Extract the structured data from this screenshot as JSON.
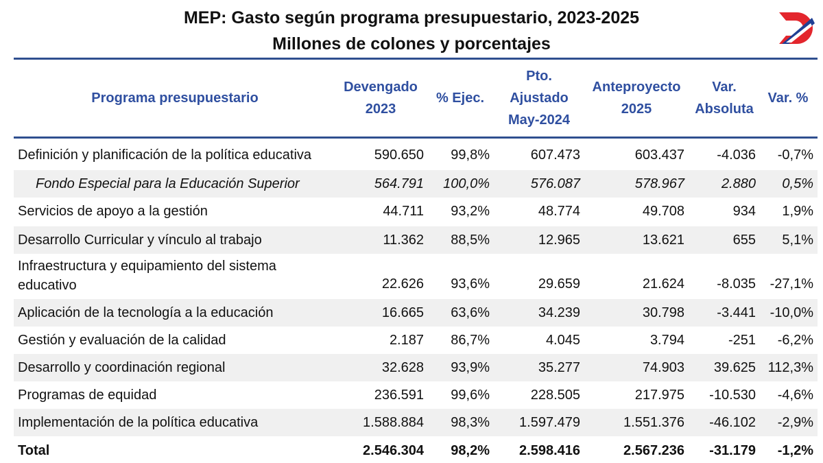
{
  "title": {
    "line1": "MEP: Gasto según programa presupuestario, 2023-2025",
    "line2": "Millones de colones y porcentajes"
  },
  "logo": {
    "icon": "d-logo-icon",
    "colors": {
      "red": "#e3262d",
      "blue": "#1f3f94"
    }
  },
  "columns": {
    "programa": "Programa presupuestario",
    "devengado": [
      "Devengado",
      "2023"
    ],
    "ejec": "% Ejec.",
    "pto": [
      "Pto.",
      "Ajustado",
      "May-2024"
    ],
    "anteproyecto": [
      "Anteproyecto",
      "2025"
    ],
    "var_abs": [
      "Var.",
      "Absoluta"
    ],
    "var_pct": "Var. %"
  },
  "rows": [
    {
      "label": "Definición y planificación de la política educativa",
      "devengado": "590.650",
      "ejec": "99,8%",
      "pto": "607.473",
      "ante": "603.437",
      "var_abs": "-4.036",
      "var_pct": "-0,7%"
    },
    {
      "label": "Fondo Especial para la Educación Superior",
      "devengado": "564.791",
      "ejec": "100,0%",
      "pto": "576.087",
      "ante": "578.967",
      "var_abs": "2.880",
      "var_pct": "0,5%"
    },
    {
      "label": "Servicios de apoyo a la gestión",
      "devengado": "44.711",
      "ejec": "93,2%",
      "pto": "48.774",
      "ante": "49.708",
      "var_abs": "934",
      "var_pct": "1,9%"
    },
    {
      "label": "Desarrollo Curricular y vínculo al trabajo",
      "devengado": "11.362",
      "ejec": "88,5%",
      "pto": "12.965",
      "ante": "13.621",
      "var_abs": "655",
      "var_pct": "5,1%"
    },
    {
      "label_lines": [
        "Infraestructura y equipamiento del sistema",
        "educativo"
      ],
      "devengado": "22.626",
      "ejec": "93,6%",
      "pto": "29.659",
      "ante": "21.624",
      "var_abs": "-8.035",
      "var_pct": "-27,1%"
    },
    {
      "label": "Aplicación de la tecnología a la educación",
      "devengado": "16.665",
      "ejec": "63,6%",
      "pto": "34.239",
      "ante": "30.798",
      "var_abs": "-3.441",
      "var_pct": "-10,0%"
    },
    {
      "label": "Gestión y evaluación de la calidad",
      "devengado": "2.187",
      "ejec": "86,7%",
      "pto": "4.045",
      "ante": "3.794",
      "var_abs": "-251",
      "var_pct": "-6,2%"
    },
    {
      "label": "Desarrollo y coordinación regional",
      "devengado": "32.628",
      "ejec": "93,9%",
      "pto": "35.277",
      "ante": "74.903",
      "var_abs": "39.625",
      "var_pct": "112,3%"
    },
    {
      "label": "Programas de equidad",
      "devengado": "236.591",
      "ejec": "99,6%",
      "pto": "228.505",
      "ante": "217.975",
      "var_abs": "-10.530",
      "var_pct": "-4,6%"
    },
    {
      "label": "Implementación de la política educativa",
      "devengado": "1.588.884",
      "ejec": "98,3%",
      "pto": "1.597.479",
      "ante": "1.551.376",
      "var_abs": "-46.102",
      "var_pct": "-2,9%"
    }
  ],
  "total": {
    "label": "Total",
    "devengado": "2.546.304",
    "ejec": "98,2%",
    "pto": "2.598.416",
    "ante": "2.567.236",
    "var_abs": "-31.179",
    "var_pct": "-1,2%"
  },
  "colors": {
    "header_text": "#2f4fa0",
    "rule": "#2f4f8f",
    "shade": "#f0f0f0"
  }
}
